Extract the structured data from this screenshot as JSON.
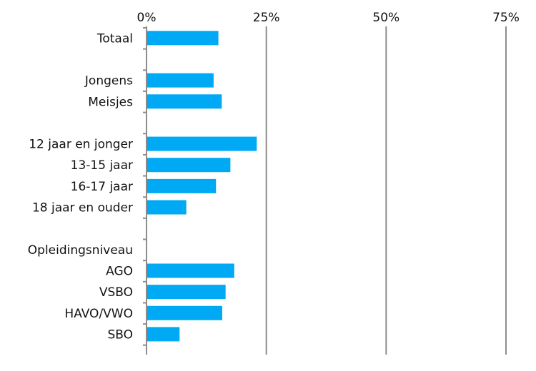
{
  "chart_data": {
    "type": "bar",
    "orientation": "horizontal",
    "title": "",
    "xlabel": "",
    "ylabel": "",
    "xlim": [
      0,
      75
    ],
    "x_ticks": [
      0,
      25,
      50,
      75
    ],
    "x_tick_labels": [
      "0%",
      "25%",
      "50%",
      "75%"
    ],
    "x_axis_position": "top",
    "grid": true,
    "legend": "none",
    "bar_color": "#00a9f4",
    "categories": [
      "Totaal",
      "",
      "Jongens",
      "Meisjes",
      "",
      "12 jaar en jonger",
      "13-15 jaar",
      "16-17 jaar",
      "18 jaar en ouder",
      "",
      "Opleidingsniveau",
      "AGO",
      "VSBO",
      "HAVO/VWO",
      "SBO"
    ],
    "values": [
      15,
      null,
      14,
      15.7,
      null,
      23,
      17.5,
      14.5,
      8.3,
      null,
      null,
      18.3,
      16.5,
      15.8,
      6.9
    ]
  }
}
